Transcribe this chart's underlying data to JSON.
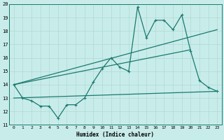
{
  "x": [
    0,
    1,
    2,
    3,
    4,
    5,
    6,
    7,
    8,
    9,
    10,
    11,
    12,
    13,
    14,
    15,
    16,
    17,
    18,
    19,
    20,
    21,
    22,
    23
  ],
  "zigzag": [
    14.0,
    13.0,
    12.8,
    12.4,
    12.4,
    11.5,
    12.5,
    12.5,
    13.0,
    14.2,
    15.2,
    16.0,
    15.3,
    15.0,
    19.8,
    17.5,
    18.8,
    18.8,
    18.1,
    19.2,
    16.5,
    14.3,
    13.8,
    13.5
  ],
  "trend1_x": [
    0,
    23
  ],
  "trend1_y": [
    14.0,
    18.1
  ],
  "trend2_x": [
    0,
    23
  ],
  "trend2_y": [
    13.0,
    13.5
  ],
  "trend3_x": [
    0,
    20
  ],
  "trend3_y": [
    14.0,
    16.6
  ],
  "bg_color": "#c8ecea",
  "line_color": "#1a7a6e",
  "grid_color": "#b0d8d4",
  "xlabel": "Humidex (Indice chaleur)",
  "ylim": [
    11,
    20
  ],
  "xlim": [
    -0.5,
    23.5
  ],
  "yticks": [
    11,
    12,
    13,
    14,
    15,
    16,
    17,
    18,
    19,
    20
  ],
  "xticks": [
    0,
    1,
    2,
    3,
    4,
    5,
    6,
    7,
    8,
    9,
    10,
    11,
    12,
    13,
    14,
    15,
    16,
    17,
    18,
    19,
    20,
    21,
    22,
    23
  ],
  "xtick_labels": [
    "0",
    "1",
    "2",
    "3",
    "4",
    "5",
    "6",
    "7",
    "8",
    "9",
    "10",
    "11",
    "12",
    "13",
    "14",
    "15",
    "16",
    "17",
    "18",
    "19",
    "20",
    "21",
    "22",
    "23"
  ]
}
